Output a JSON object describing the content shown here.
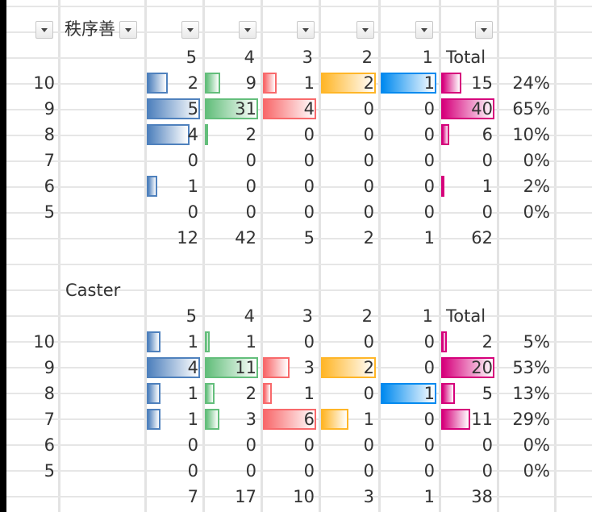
{
  "header": {
    "filter_label": "秩序善",
    "filter_buttons": [
      "",
      "",
      "",
      "",
      "",
      "",
      ""
    ]
  },
  "colors": {
    "5": "#4f81bd",
    "4": "#63be7b",
    "3": "#f8696b",
    "2": "#ffb628",
    "1": "#008aef",
    "Total": "#d6007b"
  },
  "tables": [
    {
      "title": "",
      "header": [
        "5",
        "4",
        "3",
        "2",
        "1",
        "Total"
      ],
      "rows": [
        {
          "label": "10",
          "cells": [
            "2",
            "9",
            "1",
            "2",
            "1",
            "15",
            "24%"
          ],
          "bars": [
            0.4,
            0.29,
            0.25,
            1,
            1,
            0.375
          ]
        },
        {
          "label": "9",
          "cells": [
            "5",
            "31",
            "4",
            "0",
            "0",
            "40",
            "65%"
          ],
          "bars": [
            1,
            1,
            1,
            0,
            0,
            1
          ]
        },
        {
          "label": "8",
          "cells": [
            "4",
            "2",
            "0",
            "0",
            "0",
            "6",
            "10%"
          ],
          "bars": [
            0.8,
            0.065,
            0,
            0,
            0,
            0.15
          ]
        },
        {
          "label": "7",
          "cells": [
            "0",
            "0",
            "0",
            "0",
            "0",
            "0",
            "0%"
          ],
          "bars": [
            0,
            0,
            0,
            0,
            0,
            0
          ]
        },
        {
          "label": "6",
          "cells": [
            "1",
            "0",
            "0",
            "0",
            "0",
            "1",
            "2%"
          ],
          "bars": [
            0.2,
            0,
            0,
            0,
            0,
            0.025
          ]
        },
        {
          "label": "5",
          "cells": [
            "0",
            "0",
            "0",
            "0",
            "0",
            "0",
            "0%"
          ],
          "bars": [
            0,
            0,
            0,
            0,
            0,
            0
          ]
        }
      ],
      "totals": [
        "12",
        "42",
        "5",
        "2",
        "1",
        "62"
      ]
    },
    {
      "title": "Caster",
      "header": [
        "5",
        "4",
        "3",
        "2",
        "1",
        "Total"
      ],
      "rows": [
        {
          "label": "10",
          "cells": [
            "1",
            "1",
            "0",
            "0",
            "0",
            "2",
            "5%"
          ],
          "bars": [
            0.25,
            0.09,
            0,
            0,
            0,
            0.1
          ]
        },
        {
          "label": "9",
          "cells": [
            "4",
            "11",
            "3",
            "2",
            "0",
            "20",
            "53%"
          ],
          "bars": [
            1,
            1,
            0.5,
            1,
            0,
            1
          ]
        },
        {
          "label": "8",
          "cells": [
            "1",
            "2",
            "1",
            "0",
            "1",
            "5",
            "13%"
          ],
          "bars": [
            0.25,
            0.18,
            0.17,
            0,
            1,
            0.25
          ]
        },
        {
          "label": "7",
          "cells": [
            "1",
            "3",
            "6",
            "1",
            "0",
            "11",
            "29%"
          ],
          "bars": [
            0.25,
            0.27,
            1,
            0.5,
            0,
            0.55
          ]
        },
        {
          "label": "6",
          "cells": [
            "0",
            "0",
            "0",
            "0",
            "0",
            "0",
            "0%"
          ],
          "bars": [
            0,
            0,
            0,
            0,
            0,
            0
          ]
        },
        {
          "label": "5",
          "cells": [
            "0",
            "0",
            "0",
            "0",
            "0",
            "0",
            "0%"
          ],
          "bars": [
            0,
            0,
            0,
            0,
            0,
            0
          ]
        }
      ],
      "totals": [
        "7",
        "17",
        "10",
        "3",
        "1",
        "38"
      ]
    }
  ]
}
